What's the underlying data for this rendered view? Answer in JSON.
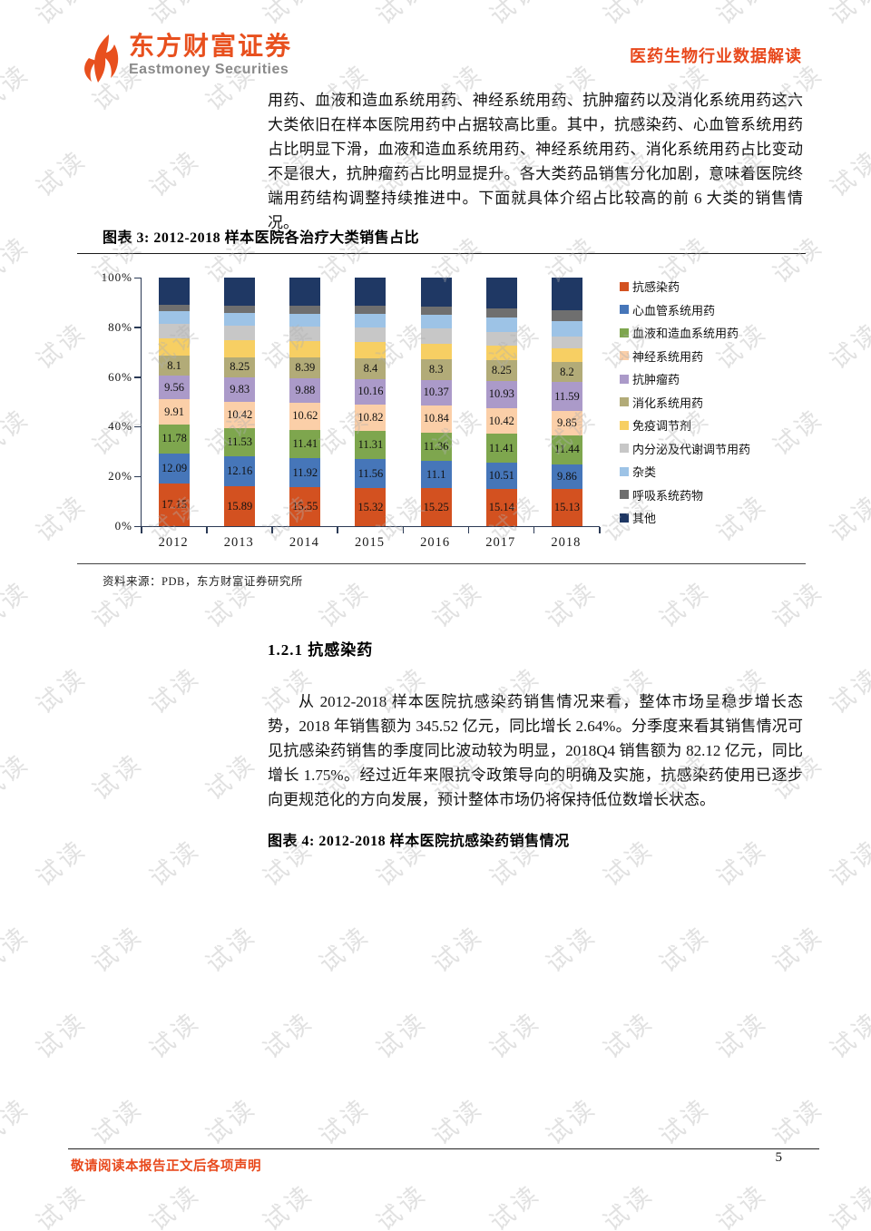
{
  "watermark": {
    "text": "试读"
  },
  "header": {
    "logo": {
      "cn": "东方财富证券",
      "en": "Eastmoney Securities"
    },
    "doc_title": "医药生物行业数据解读"
  },
  "paragraph1": "用药、血液和造血系统用药、神经系统用药、抗肿瘤药以及消化系统用药这六大类依旧在样本医院用药中占据较高比重。其中，抗感染药、心血管系统用药占比明显下滑，血液和造血系统用药、神经系统用药、消化系统用药占比变动不是很大，抗肿瘤药占比明显提升。各大类药品销售分化加剧，意味着医院终端用药结构调整持续推进中。下面就具体介绍占比较高的前 6 大类的销售情况。",
  "figure3": {
    "title": "图表 3: 2012-2018 样本医院各治疗大类销售占比",
    "source": "资料来源：PDB，东方财富证券研究所"
  },
  "chart_data": {
    "type": "bar",
    "stacked": true,
    "stack_total": 100,
    "title": "2012-2018 样本医院各治疗大类销售占比",
    "categories": [
      "2012",
      "2013",
      "2014",
      "2015",
      "2016",
      "2017",
      "2018"
    ],
    "y_ticks": [
      "0%",
      "20%",
      "40%",
      "60%",
      "80%",
      "100%"
    ],
    "ylim": [
      0,
      100
    ],
    "legend_position": "right",
    "grid": false,
    "series": [
      {
        "name": "抗感染药",
        "color": "#D35120",
        "show_labels": true,
        "values": [
          17.15,
          15.89,
          15.55,
          15.32,
          15.25,
          15.14,
          15.13
        ]
      },
      {
        "name": "心血管系统用药",
        "color": "#4676B9",
        "show_labels": true,
        "values": [
          12.09,
          12.16,
          11.92,
          11.56,
          11.1,
          10.51,
          9.86
        ]
      },
      {
        "name": "血液和造血系统用药",
        "color": "#7EA64E",
        "show_labels": true,
        "values": [
          11.78,
          11.53,
          11.41,
          11.31,
          11.36,
          11.41,
          11.44
        ]
      },
      {
        "name": "神经系统用药",
        "color": "#FBCFA8",
        "show_labels": true,
        "values": [
          9.91,
          10.42,
          10.62,
          10.82,
          10.84,
          10.42,
          9.85
        ]
      },
      {
        "name": "抗肿瘤药",
        "color": "#AB9AC9",
        "show_labels": true,
        "values": [
          9.56,
          9.83,
          9.88,
          10.16,
          10.37,
          10.93,
          11.59
        ]
      },
      {
        "name": "消化系统用药",
        "color": "#B2AB78",
        "show_labels": true,
        "values": [
          8.1,
          8.25,
          8.39,
          8.4,
          8.3,
          8.25,
          8.2
        ]
      },
      {
        "name": "免疫调节剂",
        "color": "#F7CF63",
        "show_labels": false,
        "values": [
          6.9,
          6.9,
          6.8,
          6.7,
          6.3,
          6.0,
          5.5
        ]
      },
      {
        "name": "内分泌及代谢调节用药",
        "color": "#C7C7C7",
        "show_labels": false,
        "values": [
          5.8,
          5.8,
          5.7,
          5.7,
          5.9,
          5.6,
          4.9
        ]
      },
      {
        "name": "杂类",
        "color": "#9DC3E6",
        "show_labels": false,
        "values": [
          5.1,
          5.2,
          5.3,
          5.4,
          5.5,
          5.7,
          6.1
        ]
      },
      {
        "name": "呼吸系统药物",
        "color": "#6F6F6F",
        "show_labels": false,
        "values": [
          2.7,
          2.8,
          3.0,
          3.2,
          3.5,
          3.8,
          4.3
        ]
      },
      {
        "name": "其他",
        "color": "#1F3864",
        "show_labels": false,
        "values": [
          10.91,
          11.22,
          11.43,
          11.43,
          11.58,
          12.24,
          13.13
        ]
      }
    ]
  },
  "section": {
    "heading": "1.2.1 抗感染药",
    "paragraph": "从 2012-2018 样本医院抗感染药销售情况来看，整体市场呈稳步增长态势，2018 年销售额为 345.52 亿元，同比增长 2.64%。分季度来看其销售情况可见抗感染药销售的季度同比波动较为明显，2018Q4 销售额为 82.12 亿元，同比增长 1.75%。经过近年来限抗令政策导向的明确及实施，抗感染药使用已逐步向更规范化的方向发展，预计整体市场仍将保持低位数增长状态。"
  },
  "figure4": {
    "title": "图表 4: 2012-2018 样本医院抗感染药销售情况"
  },
  "footer": {
    "disclaimer": "敬请阅读本报告正文后各项声明",
    "page_number": "5"
  },
  "colors": {
    "brand_orange": "#E8491C",
    "title_orange": "#E8481C",
    "axis": "#2B3A55"
  }
}
